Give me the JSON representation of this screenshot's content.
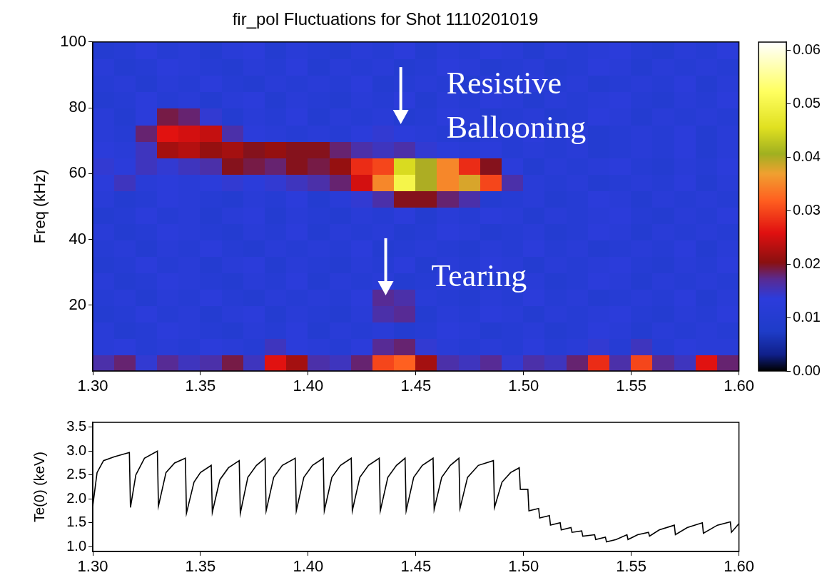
{
  "chart_data": [
    {
      "type": "heatmap",
      "title": "fir_pol Fluctuations for Shot 1110201019",
      "y_label": "Freq (kHz)",
      "grid": false,
      "xlim": [
        1.3,
        1.6
      ],
      "xticks": [
        {
          "value": 1.3,
          "label": "1.30"
        },
        1.35,
        {
          "value": 1.4,
          "label": "1.40"
        },
        1.45,
        {
          "value": 1.5,
          "label": "1.50"
        },
        1.55,
        {
          "value": 1.6,
          "label": "1.60"
        }
      ],
      "ylim": [
        0,
        100
      ],
      "yticks": [
        20,
        40,
        60,
        80,
        100
      ],
      "x": [
        1.305,
        1.315,
        1.325,
        1.335,
        1.345,
        1.355,
        1.365,
        1.375,
        1.385,
        1.395,
        1.405,
        1.415,
        1.425,
        1.435,
        1.445,
        1.455,
        1.465,
        1.475,
        1.485,
        1.495,
        1.505,
        1.515,
        1.525,
        1.535,
        1.545,
        1.555,
        1.565,
        1.575,
        1.585,
        1.595
      ],
      "y": [
        2.5,
        7.5,
        12.5,
        17.5,
        22.5,
        27.5,
        32.5,
        37.5,
        42.5,
        47.5,
        52.5,
        57.5,
        62.5,
        67.5,
        72.5,
        77.5,
        82.5,
        87.5,
        92.5,
        97.5
      ],
      "z": [
        [
          0.016,
          0.018,
          0.014,
          0.017,
          0.015,
          0.016,
          0.019,
          0.015,
          0.026,
          0.022,
          0.016,
          0.015,
          0.018,
          0.03,
          0.032,
          0.022,
          0.016,
          0.015,
          0.017,
          0.014,
          0.016,
          0.015,
          0.018,
          0.028,
          0.016,
          0.03,
          0.017,
          0.015,
          0.026,
          0.018
        ],
        [
          0.012,
          0.013,
          0.011,
          0.012,
          0.011,
          0.013,
          0.012,
          0.011,
          0.015,
          0.013,
          0.012,
          0.011,
          0.013,
          0.017,
          0.018,
          0.014,
          0.012,
          0.011,
          0.012,
          0.011,
          0.013,
          0.011,
          0.012,
          0.014,
          0.011,
          0.015,
          0.011,
          0.013,
          0.012,
          0.012
        ],
        [
          0.012,
          0.01,
          0.011,
          0.013,
          0.012,
          0.011,
          0.01,
          0.012,
          0.011,
          0.013,
          0.01,
          0.012,
          0.011,
          0.012,
          0.01,
          0.011,
          0.013,
          0.012,
          0.01,
          0.011,
          0.012,
          0.01,
          0.011,
          0.013,
          0.012,
          0.01,
          0.012,
          0.011,
          0.012,
          0.011
        ],
        [
          0.01,
          0.011,
          0.013,
          0.011,
          0.012,
          0.01,
          0.012,
          0.013,
          0.01,
          0.012,
          0.011,
          0.01,
          0.012,
          0.016,
          0.017,
          0.01,
          0.012,
          0.011,
          0.013,
          0.012,
          0.01,
          0.012,
          0.011,
          0.012,
          0.013,
          0.011,
          0.01,
          0.012,
          0.011,
          0.013
        ],
        [
          0.011,
          0.012,
          0.01,
          0.012,
          0.011,
          0.013,
          0.011,
          0.01,
          0.012,
          0.011,
          0.012,
          0.011,
          0.013,
          0.017,
          0.016,
          0.012,
          0.011,
          0.01,
          0.012,
          0.011,
          0.013,
          0.011,
          0.012,
          0.01,
          0.011,
          0.012,
          0.011,
          0.013,
          0.01,
          0.012
        ],
        [
          0.012,
          0.01,
          0.011,
          0.013,
          0.012,
          0.011,
          0.01,
          0.012,
          0.011,
          0.013,
          0.01,
          0.012,
          0.011,
          0.012,
          0.01,
          0.011,
          0.013,
          0.012,
          0.01,
          0.011,
          0.012,
          0.01,
          0.011,
          0.013,
          0.012,
          0.01,
          0.012,
          0.011,
          0.012,
          0.011
        ],
        [
          0.01,
          0.011,
          0.013,
          0.011,
          0.012,
          0.01,
          0.012,
          0.013,
          0.01,
          0.012,
          0.011,
          0.01,
          0.012,
          0.011,
          0.013,
          0.01,
          0.012,
          0.011,
          0.013,
          0.012,
          0.01,
          0.012,
          0.011,
          0.012,
          0.013,
          0.011,
          0.01,
          0.012,
          0.011,
          0.013
        ],
        [
          0.011,
          0.012,
          0.01,
          0.012,
          0.011,
          0.013,
          0.011,
          0.01,
          0.012,
          0.011,
          0.012,
          0.011,
          0.013,
          0.01,
          0.011,
          0.012,
          0.011,
          0.01,
          0.012,
          0.011,
          0.013,
          0.011,
          0.012,
          0.01,
          0.011,
          0.012,
          0.011,
          0.013,
          0.01,
          0.012
        ],
        [
          0.012,
          0.01,
          0.011,
          0.013,
          0.012,
          0.011,
          0.01,
          0.012,
          0.011,
          0.013,
          0.01,
          0.012,
          0.011,
          0.012,
          0.01,
          0.011,
          0.013,
          0.012,
          0.01,
          0.011,
          0.012,
          0.01,
          0.011,
          0.013,
          0.012,
          0.01,
          0.012,
          0.011,
          0.012,
          0.011
        ],
        [
          0.01,
          0.011,
          0.013,
          0.011,
          0.012,
          0.01,
          0.012,
          0.013,
          0.01,
          0.012,
          0.011,
          0.01,
          0.012,
          0.011,
          0.013,
          0.01,
          0.012,
          0.011,
          0.013,
          0.012,
          0.01,
          0.012,
          0.011,
          0.012,
          0.013,
          0.011,
          0.01,
          0.012,
          0.011,
          0.013
        ],
        [
          0.012,
          0.01,
          0.011,
          0.013,
          0.012,
          0.011,
          0.01,
          0.012,
          0.011,
          0.013,
          0.01,
          0.012,
          0.014,
          0.016,
          0.02,
          0.02,
          0.018,
          0.016,
          0.01,
          0.011,
          0.012,
          0.01,
          0.011,
          0.013,
          0.012,
          0.01,
          0.012,
          0.011,
          0.012,
          0.011
        ],
        [
          0.013,
          0.015,
          0.012,
          0.013,
          0.012,
          0.013,
          0.014,
          0.013,
          0.014,
          0.015,
          0.016,
          0.018,
          0.025,
          0.035,
          0.05,
          0.04,
          0.035,
          0.038,
          0.03,
          0.016,
          0.012,
          0.011,
          0.012,
          0.01,
          0.011,
          0.012,
          0.011,
          0.013,
          0.01,
          0.012
        ],
        [
          0.014,
          0.013,
          0.015,
          0.014,
          0.015,
          0.016,
          0.02,
          0.019,
          0.018,
          0.02,
          0.019,
          0.021,
          0.028,
          0.03,
          0.045,
          0.04,
          0.035,
          0.028,
          0.02,
          0.013,
          0.01,
          0.012,
          0.011,
          0.012,
          0.013,
          0.011,
          0.01,
          0.012,
          0.011,
          0.013
        ],
        [
          0.013,
          0.012,
          0.015,
          0.022,
          0.023,
          0.021,
          0.022,
          0.02,
          0.021,
          0.02,
          0.02,
          0.018,
          0.016,
          0.015,
          0.016,
          0.014,
          0.013,
          0.012,
          0.013,
          0.011,
          0.012,
          0.011,
          0.012,
          0.01,
          0.011,
          0.012,
          0.011,
          0.013,
          0.01,
          0.012
        ],
        [
          0.012,
          0.011,
          0.018,
          0.026,
          0.025,
          0.024,
          0.016,
          0.013,
          0.012,
          0.011,
          0.012,
          0.011,
          0.013,
          0.014,
          0.013,
          0.012,
          0.011,
          0.01,
          0.012,
          0.011,
          0.013,
          0.011,
          0.012,
          0.01,
          0.011,
          0.012,
          0.011,
          0.013,
          0.01,
          0.012
        ],
        [
          0.012,
          0.01,
          0.013,
          0.019,
          0.018,
          0.014,
          0.01,
          0.012,
          0.011,
          0.013,
          0.01,
          0.012,
          0.011,
          0.012,
          0.01,
          0.011,
          0.013,
          0.012,
          0.01,
          0.011,
          0.012,
          0.01,
          0.011,
          0.013,
          0.012,
          0.01,
          0.012,
          0.011,
          0.012,
          0.011
        ],
        [
          0.01,
          0.011,
          0.013,
          0.011,
          0.012,
          0.01,
          0.012,
          0.013,
          0.01,
          0.012,
          0.011,
          0.01,
          0.012,
          0.011,
          0.013,
          0.01,
          0.012,
          0.011,
          0.013,
          0.012,
          0.01,
          0.012,
          0.011,
          0.012,
          0.013,
          0.011,
          0.01,
          0.012,
          0.011,
          0.013
        ],
        [
          0.011,
          0.012,
          0.01,
          0.012,
          0.011,
          0.013,
          0.011,
          0.01,
          0.012,
          0.011,
          0.012,
          0.011,
          0.013,
          0.01,
          0.011,
          0.012,
          0.011,
          0.01,
          0.012,
          0.011,
          0.013,
          0.011,
          0.012,
          0.01,
          0.011,
          0.012,
          0.011,
          0.013,
          0.01,
          0.012
        ],
        [
          0.012,
          0.01,
          0.011,
          0.013,
          0.012,
          0.011,
          0.01,
          0.012,
          0.011,
          0.013,
          0.01,
          0.012,
          0.011,
          0.012,
          0.01,
          0.011,
          0.013,
          0.012,
          0.01,
          0.011,
          0.012,
          0.01,
          0.011,
          0.013,
          0.012,
          0.01,
          0.012,
          0.011,
          0.012,
          0.011
        ],
        [
          0.01,
          0.011,
          0.013,
          0.011,
          0.012,
          0.01,
          0.012,
          0.013,
          0.01,
          0.012,
          0.011,
          0.01,
          0.012,
          0.011,
          0.013,
          0.01,
          0.012,
          0.011,
          0.013,
          0.012,
          0.01,
          0.012,
          0.011,
          0.012,
          0.013,
          0.011,
          0.01,
          0.012,
          0.011,
          0.013
        ]
      ],
      "colorbar": {
        "range": [
          0,
          0.0615
        ],
        "ticks": [
          {
            "value": 0,
            "label": "0.00"
          },
          0.01,
          0.02,
          0.03,
          0.04,
          0.05,
          0.06
        ]
      },
      "annotations": [
        {
          "text": "Resistive Ballooning",
          "x": 1.443,
          "y": 75
        },
        {
          "text": "Tearing",
          "x": 1.436,
          "y": 23
        }
      ]
    },
    {
      "type": "line",
      "y_label": "Te(0) (keV)",
      "grid": false,
      "color": "#000000",
      "xlim": [
        1.3,
        1.6
      ],
      "xticks": [
        {
          "value": 1.3,
          "label": "1.30"
        },
        1.35,
        {
          "value": 1.4,
          "label": "1.40"
        },
        1.45,
        {
          "value": 1.5,
          "label": "1.50"
        },
        1.55,
        {
          "value": 1.6,
          "label": "1.60"
        }
      ],
      "ylim": [
        0.9,
        3.6
      ],
      "yticks": [
        {
          "value": 1.0,
          "label": "1.0"
        },
        1.5,
        {
          "value": 2.0,
          "label": "2.0"
        },
        2.5,
        {
          "value": 3.0,
          "label": "3.0"
        },
        3.5
      ],
      "x": [
        1.3,
        1.302,
        1.305,
        1.31,
        1.317,
        1.3175,
        1.32,
        1.324,
        1.33,
        1.3305,
        1.334,
        1.338,
        1.343,
        1.3435,
        1.347,
        1.35,
        1.355,
        1.3555,
        1.359,
        1.363,
        1.368,
        1.3685,
        1.372,
        1.376,
        1.38,
        1.3805,
        1.384,
        1.388,
        1.394,
        1.3945,
        1.398,
        1.402,
        1.407,
        1.4075,
        1.411,
        1.415,
        1.42,
        1.4205,
        1.424,
        1.428,
        1.433,
        1.4335,
        1.437,
        1.441,
        1.445,
        1.4455,
        1.449,
        1.453,
        1.458,
        1.4585,
        1.462,
        1.466,
        1.47,
        1.4705,
        1.474,
        1.479,
        1.486,
        1.4865,
        1.49,
        1.494,
        1.498,
        1.4985,
        1.502,
        1.5025,
        1.507,
        1.5075,
        1.512,
        1.5125,
        1.517,
        1.5175,
        1.522,
        1.5225,
        1.527,
        1.5275,
        1.533,
        1.5335,
        1.538,
        1.5385,
        1.543,
        1.548,
        1.5485,
        1.553,
        1.558,
        1.5585,
        1.563,
        1.57,
        1.5705,
        1.576,
        1.583,
        1.5835,
        1.59,
        1.596,
        1.5965,
        1.6
      ],
      "values": [
        1.85,
        2.55,
        2.8,
        2.88,
        2.97,
        1.82,
        2.5,
        2.85,
        3.0,
        1.85,
        2.55,
        2.75,
        2.85,
        1.7,
        2.35,
        2.55,
        2.7,
        1.72,
        2.4,
        2.65,
        2.8,
        1.7,
        2.45,
        2.7,
        2.85,
        1.75,
        2.45,
        2.7,
        2.85,
        1.75,
        2.45,
        2.7,
        2.85,
        1.75,
        2.45,
        2.7,
        2.85,
        1.75,
        2.45,
        2.7,
        2.85,
        1.75,
        2.45,
        2.7,
        2.85,
        1.75,
        2.45,
        2.7,
        2.85,
        1.78,
        2.45,
        2.7,
        2.85,
        1.8,
        2.45,
        2.7,
        2.8,
        1.82,
        2.35,
        2.55,
        2.65,
        2.2,
        2.2,
        1.75,
        1.8,
        1.6,
        1.65,
        1.45,
        1.5,
        1.35,
        1.4,
        1.3,
        1.33,
        1.22,
        1.25,
        1.15,
        1.2,
        1.1,
        1.15,
        1.25,
        1.15,
        1.25,
        1.3,
        1.22,
        1.35,
        1.45,
        1.25,
        1.4,
        1.5,
        1.28,
        1.45,
        1.52,
        1.3,
        1.48
      ]
    }
  ]
}
